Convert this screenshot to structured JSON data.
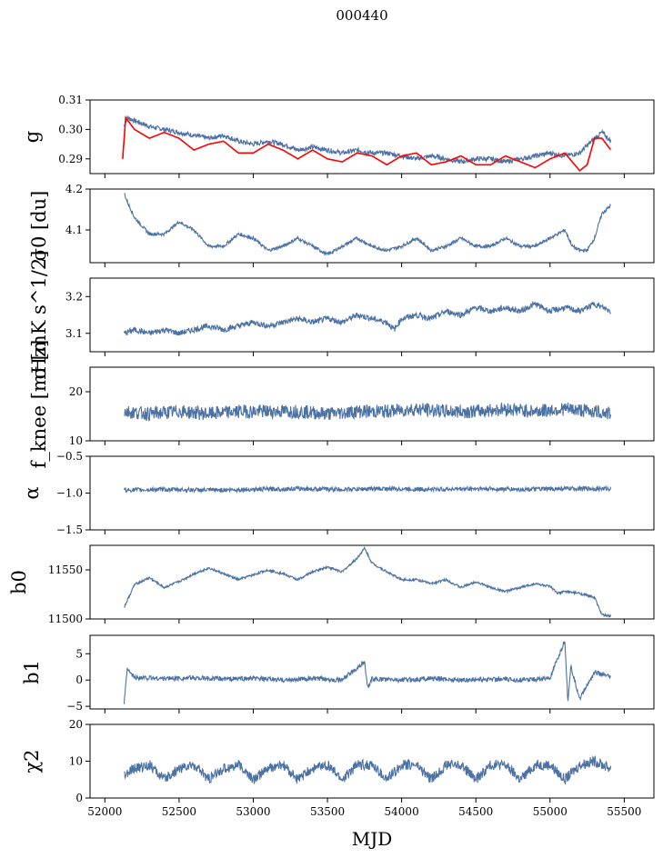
{
  "title": "000440",
  "chart_data": {
    "type": "line",
    "title": "000440",
    "xlabel": "MJD",
    "xlim": [
      51900,
      55700
    ],
    "xticks": [
      52000,
      52500,
      53000,
      53500,
      54000,
      54500,
      55000,
      55500
    ],
    "x_range": [
      52130,
      55410
    ],
    "colors": {
      "series": "#4c72a4",
      "fit": "#ff0000"
    },
    "panels": [
      {
        "id": "g",
        "ylabel": "g",
        "ylim": [
          0.285,
          0.31
        ],
        "yticks": [
          0.29,
          0.3,
          0.31
        ],
        "ytick_labels": [
          "0.29",
          "0.30",
          "0.31"
        ],
        "series": [
          {
            "color": "#4c72a4",
            "x": [
              52130,
              52150,
              52200,
              52300,
              52400,
              52500,
              52600,
              52700,
              52800,
              52900,
              53000,
              53100,
              53200,
              53300,
              53400,
              53500,
              53600,
              53700,
              53800,
              53900,
              54000,
              54100,
              54200,
              54300,
              54400,
              54500,
              54600,
              54700,
              54800,
              54900,
              55000,
              55100,
              55200,
              55300,
              55350,
              55410
            ],
            "values": [
              0.301,
              0.304,
              0.303,
              0.301,
              0.3,
              0.299,
              0.298,
              0.297,
              0.298,
              0.296,
              0.295,
              0.296,
              0.295,
              0.293,
              0.294,
              0.293,
              0.292,
              0.293,
              0.292,
              0.292,
              0.291,
              0.29,
              0.291,
              0.29,
              0.289,
              0.29,
              0.29,
              0.289,
              0.29,
              0.291,
              0.292,
              0.291,
              0.292,
              0.297,
              0.299,
              0.296
            ]
          },
          {
            "color": "#ff0000",
            "x": [
              52120,
              52140,
              52200,
              52300,
              52400,
              52500,
              52600,
              52700,
              52800,
              52900,
              53000,
              53100,
              53200,
              53300,
              53400,
              53500,
              53600,
              53700,
              53800,
              53900,
              54000,
              54100,
              54200,
              54300,
              54400,
              54500,
              54600,
              54700,
              54800,
              54900,
              55000,
              55100,
              55200,
              55250,
              55300,
              55350,
              55410
            ],
            "values": [
              0.29,
              0.304,
              0.3,
              0.297,
              0.299,
              0.297,
              0.293,
              0.295,
              0.296,
              0.292,
              0.292,
              0.295,
              0.293,
              0.29,
              0.293,
              0.29,
              0.289,
              0.292,
              0.291,
              0.288,
              0.291,
              0.292,
              0.288,
              0.289,
              0.291,
              0.288,
              0.288,
              0.291,
              0.289,
              0.287,
              0.29,
              0.292,
              0.286,
              0.288,
              0.297,
              0.297,
              0.293
            ]
          }
        ]
      },
      {
        "id": "sigma0",
        "ylabel": "σ0 [du]",
        "ylim": [
          4.02,
          4.2
        ],
        "yticks": [
          4.1,
          4.2
        ],
        "ytick_labels": [
          "4.1",
          "4.2"
        ],
        "series": [
          {
            "color": "#4c72a4",
            "x": [
              52130,
              52150,
              52200,
              52300,
              52400,
              52500,
              52600,
              52700,
              52800,
              52900,
              53000,
              53100,
              53200,
              53300,
              53400,
              53500,
              53600,
              53700,
              53800,
              53900,
              54000,
              54100,
              54200,
              54300,
              54400,
              54500,
              54600,
              54700,
              54800,
              54900,
              55000,
              55100,
              55150,
              55200,
              55250,
              55300,
              55350,
              55410
            ],
            "values": [
              4.19,
              4.17,
              4.13,
              4.09,
              4.09,
              4.12,
              4.1,
              4.06,
              4.06,
              4.09,
              4.08,
              4.05,
              4.06,
              4.08,
              4.06,
              4.04,
              4.06,
              4.08,
              4.06,
              4.05,
              4.06,
              4.08,
              4.05,
              4.06,
              4.08,
              4.06,
              4.06,
              4.08,
              4.06,
              4.06,
              4.08,
              4.1,
              4.06,
              4.05,
              4.05,
              4.08,
              4.14,
              4.16
            ]
          }
        ]
      },
      {
        "id": "sigma_w",
        "ylabel": "σ [mK s^1/2]",
        "ylim": [
          3.05,
          3.25
        ],
        "yticks": [
          3.1,
          3.2
        ],
        "ytick_labels": [
          "3.1",
          "3.2"
        ],
        "series": [
          {
            "color": "#4c72a4",
            "x": [
              52130,
              52200,
              52300,
              52400,
              52500,
              52600,
              52700,
              52800,
              52900,
              53000,
              53100,
              53200,
              53300,
              53400,
              53500,
              53600,
              53700,
              53800,
              53900,
              53950,
              54000,
              54100,
              54200,
              54300,
              54400,
              54500,
              54600,
              54700,
              54800,
              54900,
              55000,
              55100,
              55200,
              55300,
              55410
            ],
            "values": [
              3.1,
              3.11,
              3.1,
              3.11,
              3.1,
              3.11,
              3.12,
              3.11,
              3.12,
              3.13,
              3.12,
              3.13,
              3.14,
              3.13,
              3.14,
              3.13,
              3.15,
              3.14,
              3.13,
              3.11,
              3.14,
              3.15,
              3.14,
              3.16,
              3.15,
              3.17,
              3.16,
              3.17,
              3.16,
              3.18,
              3.16,
              3.17,
              3.16,
              3.18,
              3.16
            ]
          }
        ]
      },
      {
        "id": "fknee",
        "ylabel": "f_knee [mHz]",
        "ylim": [
          10,
          25
        ],
        "yticks": [
          10,
          20
        ],
        "ytick_labels": [
          "10",
          "20"
        ],
        "series": [
          {
            "color": "#4c72a4",
            "x": [
              52130,
              52300,
              52500,
              52700,
              52900,
              53100,
              53300,
              53500,
              53700,
              53900,
              54100,
              54300,
              54500,
              54700,
              54900,
              55100,
              55300,
              55410
            ],
            "values": [
              16,
              15.5,
              16,
              15.5,
              16,
              16,
              16,
              15.5,
              16,
              16,
              16.5,
              16,
              16,
              16.5,
              16,
              16.5,
              16,
              15.5
            ]
          }
        ]
      },
      {
        "id": "alpha",
        "ylabel": "α",
        "ylim": [
          -1.5,
          -0.5
        ],
        "yticks": [
          -1.5,
          -1.0,
          -0.5
        ],
        "ytick_labels": [
          "−1.5",
          "−1.0",
          "−0.5"
        ],
        "series": [
          {
            "color": "#4c72a4",
            "x": [
              52130,
              52400,
              52700,
              53000,
              53300,
              53600,
              53900,
              54200,
              54500,
              54800,
              55100,
              55410
            ],
            "values": [
              -0.96,
              -0.95,
              -0.96,
              -0.95,
              -0.94,
              -0.95,
              -0.94,
              -0.95,
              -0.94,
              -0.95,
              -0.94,
              -0.94
            ]
          }
        ]
      },
      {
        "id": "b0",
        "ylabel": "b0",
        "ylim": [
          11500,
          11575
        ],
        "yticks": [
          11500,
          11550
        ],
        "ytick_labels": [
          "11500",
          "11550"
        ],
        "series": [
          {
            "color": "#4c72a4",
            "x": [
              52130,
              52200,
              52300,
              52400,
              52500,
              52600,
              52700,
              52800,
              52900,
              53000,
              53100,
              53200,
              53300,
              53400,
              53500,
              53600,
              53700,
              53750,
              53800,
              53900,
              54000,
              54100,
              54200,
              54300,
              54400,
              54500,
              54600,
              54700,
              54800,
              54900,
              55000,
              55050,
              55100,
              55200,
              55300,
              55350,
              55410
            ],
            "values": [
              11512,
              11535,
              11542,
              11532,
              11538,
              11546,
              11552,
              11546,
              11540,
              11545,
              11550,
              11546,
              11540,
              11548,
              11553,
              11548,
              11562,
              11572,
              11557,
              11548,
              11540,
              11540,
              11536,
              11540,
              11532,
              11538,
              11532,
              11528,
              11532,
              11536,
              11533,
              11526,
              11528,
              11526,
              11522,
              11504,
              11503
            ]
          }
        ]
      },
      {
        "id": "b1",
        "ylabel": "b1",
        "ylim": [
          -5.5,
          8.5
        ],
        "yticks": [
          -5,
          0,
          5
        ],
        "ytick_labels": [
          "−5",
          "0",
          "5"
        ],
        "series": [
          {
            "color": "#4c72a4",
            "x": [
              52130,
              52150,
              52200,
              52400,
              52600,
              52800,
              53000,
              53200,
              53400,
              53600,
              53750,
              53770,
              53800,
              54000,
              54200,
              54400,
              54600,
              54800,
              55000,
              55100,
              55120,
              55140,
              55200,
              55300,
              55410
            ],
            "values": [
              -4.5,
              2.0,
              0.5,
              0.3,
              0.4,
              0.2,
              0.3,
              0.0,
              0.3,
              0.0,
              3.5,
              -1.5,
              0.2,
              0.0,
              0.3,
              0.0,
              0.2,
              0.0,
              0.3,
              7.5,
              -4.0,
              2.5,
              -3.5,
              1.5,
              0.5
            ]
          }
        ]
      },
      {
        "id": "chi2",
        "ylabel": "χ2",
        "ylim": [
          0,
          20
        ],
        "yticks": [
          0,
          10,
          20
        ],
        "ytick_labels": [
          "0",
          "10",
          "20"
        ],
        "series": [
          {
            "color": "#4c72a4",
            "x": [
              52130,
              52200,
              52300,
              52400,
              52500,
              52600,
              52700,
              52800,
              52900,
              53000,
              53100,
              53200,
              53300,
              53400,
              53500,
              53600,
              53700,
              53800,
              53900,
              54000,
              54100,
              54200,
              54300,
              54400,
              54500,
              54600,
              54700,
              54800,
              54900,
              55000,
              55100,
              55200,
              55300,
              55410
            ],
            "values": [
              6,
              8,
              9,
              5,
              8,
              9,
              5,
              8,
              9,
              5,
              8,
              9,
              5,
              8,
              9,
              5,
              9,
              9,
              5,
              9,
              9,
              5,
              9,
              9,
              5,
              9,
              9,
              5,
              9,
              9,
              5,
              9,
              10,
              8
            ]
          }
        ]
      }
    ]
  }
}
